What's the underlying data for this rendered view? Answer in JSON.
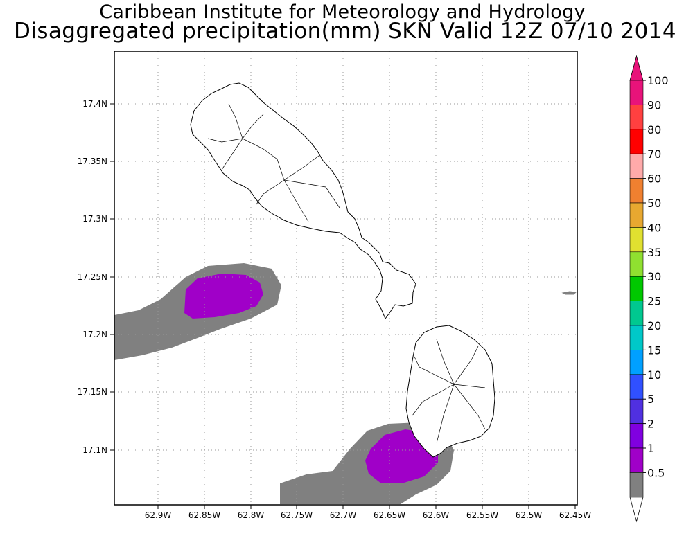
{
  "title": {
    "line1": "Caribbean Institute for Meteorology and Hydrology",
    "line2": "Disaggregated precipitation(mm) SKN Valid 12Z 07/10 2014"
  },
  "axes": {
    "lon_ticks": [
      "62.9W",
      "62.85W",
      "62.8W",
      "62.75W",
      "62.7W",
      "62.65W",
      "62.6W",
      "62.55W",
      "62.5W",
      "62.45W"
    ],
    "lat_ticks": [
      "17.4N",
      "17.35N",
      "17.3N",
      "17.25N",
      "17.2N",
      "17.15N",
      "17.1N"
    ],
    "lon_range": [
      -62.9375,
      -62.4375
    ],
    "lat_range": [
      17.0525,
      17.4425
    ],
    "grid": "dotted"
  },
  "colorbar": {
    "levels": [
      "100",
      "90",
      "80",
      "70",
      "60",
      "50",
      "40",
      "35",
      "30",
      "25",
      "20",
      "15",
      "10",
      "5",
      "2",
      "1",
      "0.5"
    ],
    "colors": [
      "#e8137a",
      "#ff4040",
      "#ff0000",
      "#ffaaaa",
      "#f08030",
      "#e8a830",
      "#e0e030",
      "#90e030",
      "#00c800",
      "#00c890",
      "#00c8c8",
      "#00a0ff",
      "#3050ff",
      "#5030e0",
      "#8000e0",
      "#a000c8",
      "#808080"
    ],
    "top_arrow_color": "#e8137a"
  },
  "precip_areas": [
    {
      "region": "west",
      "outer_level": "0.5",
      "inner_level": "1"
    },
    {
      "region": "south",
      "outer_level": "0.5",
      "inner_level": "1"
    }
  ],
  "land": [
    "St Kitts",
    "Nevis"
  ]
}
